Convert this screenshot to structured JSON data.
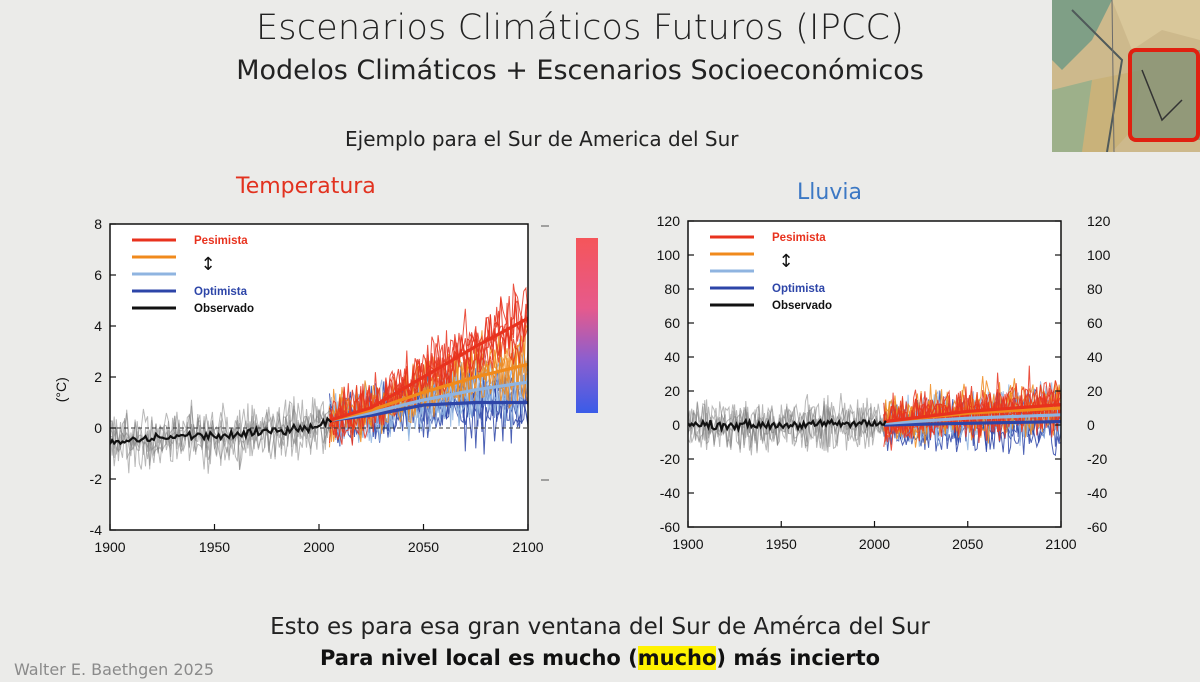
{
  "slide": {
    "title": "Escenarios Climáticos Futuros (IPCC)",
    "subtitle": "Modelos Climáticos + Escenarios Socioeconómicos",
    "example": "Ejemplo para el Sur de America del Sur",
    "footer_line1": "Esto es para esa gran ventana del Sur de Amérca del Sur",
    "footer_line2_pre": "Para nivel local es mucho (",
    "footer_line2_hl": "mucho",
    "footer_line2_post": ") más incierto",
    "author": "Walter E. Baethgen 2025"
  },
  "colors": {
    "pesimista": "#e8321e",
    "orange": "#f08a1c",
    "lightblue": "#8fb4e0",
    "optimista": "#2d45a8",
    "observado": "#111111",
    "observed_spread": "#7d7d7d",
    "title_temp": "#e2321f",
    "title_rain": "#3c78c4",
    "highlight": "#fff200"
  },
  "chart_data": [
    {
      "type": "line",
      "title": "Temperatura",
      "ylabel": "(°C)",
      "xlim": [
        1900,
        2100
      ],
      "ylim": [
        -4,
        8
      ],
      "xticks": [
        1900,
        1950,
        2000,
        2050,
        2100
      ],
      "yticks": [
        -4,
        -2,
        0,
        2,
        4,
        6,
        8
      ],
      "legend": [
        "Pesimista",
        "",
        "",
        "Optimista",
        "Observado"
      ],
      "legend_arrow": "↕",
      "colorbar": "red-to-blue",
      "series": [
        {
          "name": "Observado",
          "x": [
            1900,
            1920,
            1940,
            1960,
            1980,
            2000,
            2005
          ],
          "values": [
            -0.6,
            -0.4,
            -0.3,
            -0.3,
            -0.1,
            0.1,
            0.3
          ]
        },
        {
          "name": "Pesimista",
          "x": [
            2005,
            2025,
            2050,
            2075,
            2100
          ],
          "values": [
            0.3,
            0.8,
            2.0,
            3.2,
            4.3
          ]
        },
        {
          "name": "Orange",
          "x": [
            2005,
            2025,
            2050,
            2075,
            2100
          ],
          "values": [
            0.3,
            0.7,
            1.4,
            2.0,
            2.5
          ]
        },
        {
          "name": "Lightblue",
          "x": [
            2005,
            2025,
            2050,
            2075,
            2100
          ],
          "values": [
            0.3,
            0.6,
            1.1,
            1.5,
            1.8
          ]
        },
        {
          "name": "Optimista",
          "x": [
            2005,
            2025,
            2050,
            2075,
            2100
          ],
          "values": [
            0.3,
            0.5,
            0.9,
            1.0,
            1.0
          ]
        }
      ]
    },
    {
      "type": "line",
      "title": "Lluvia",
      "ylabel": "",
      "xlim": [
        1900,
        2100
      ],
      "ylim": [
        -60,
        120
      ],
      "xticks": [
        1900,
        1950,
        2000,
        2050,
        2100
      ],
      "yticks": [
        -60,
        -40,
        -20,
        0,
        20,
        40,
        60,
        80,
        100,
        120
      ],
      "legend": [
        "Pesimista",
        "",
        "",
        "Optimista",
        "Observado"
      ],
      "legend_arrow": "↕",
      "series": [
        {
          "name": "Observado",
          "x": [
            1900,
            1950,
            2005
          ],
          "values": [
            0,
            0,
            1
          ]
        },
        {
          "name": "Pesimista",
          "x": [
            2005,
            2050,
            2100
          ],
          "values": [
            2,
            8,
            12
          ]
        },
        {
          "name": "Orange",
          "x": [
            2005,
            2050,
            2100
          ],
          "values": [
            2,
            7,
            10
          ]
        },
        {
          "name": "Lightblue",
          "x": [
            2005,
            2050,
            2100
          ],
          "values": [
            1,
            4,
            6
          ]
        },
        {
          "name": "Optimista",
          "x": [
            2005,
            2050,
            2100
          ],
          "values": [
            0,
            1,
            2
          ]
        }
      ]
    }
  ]
}
